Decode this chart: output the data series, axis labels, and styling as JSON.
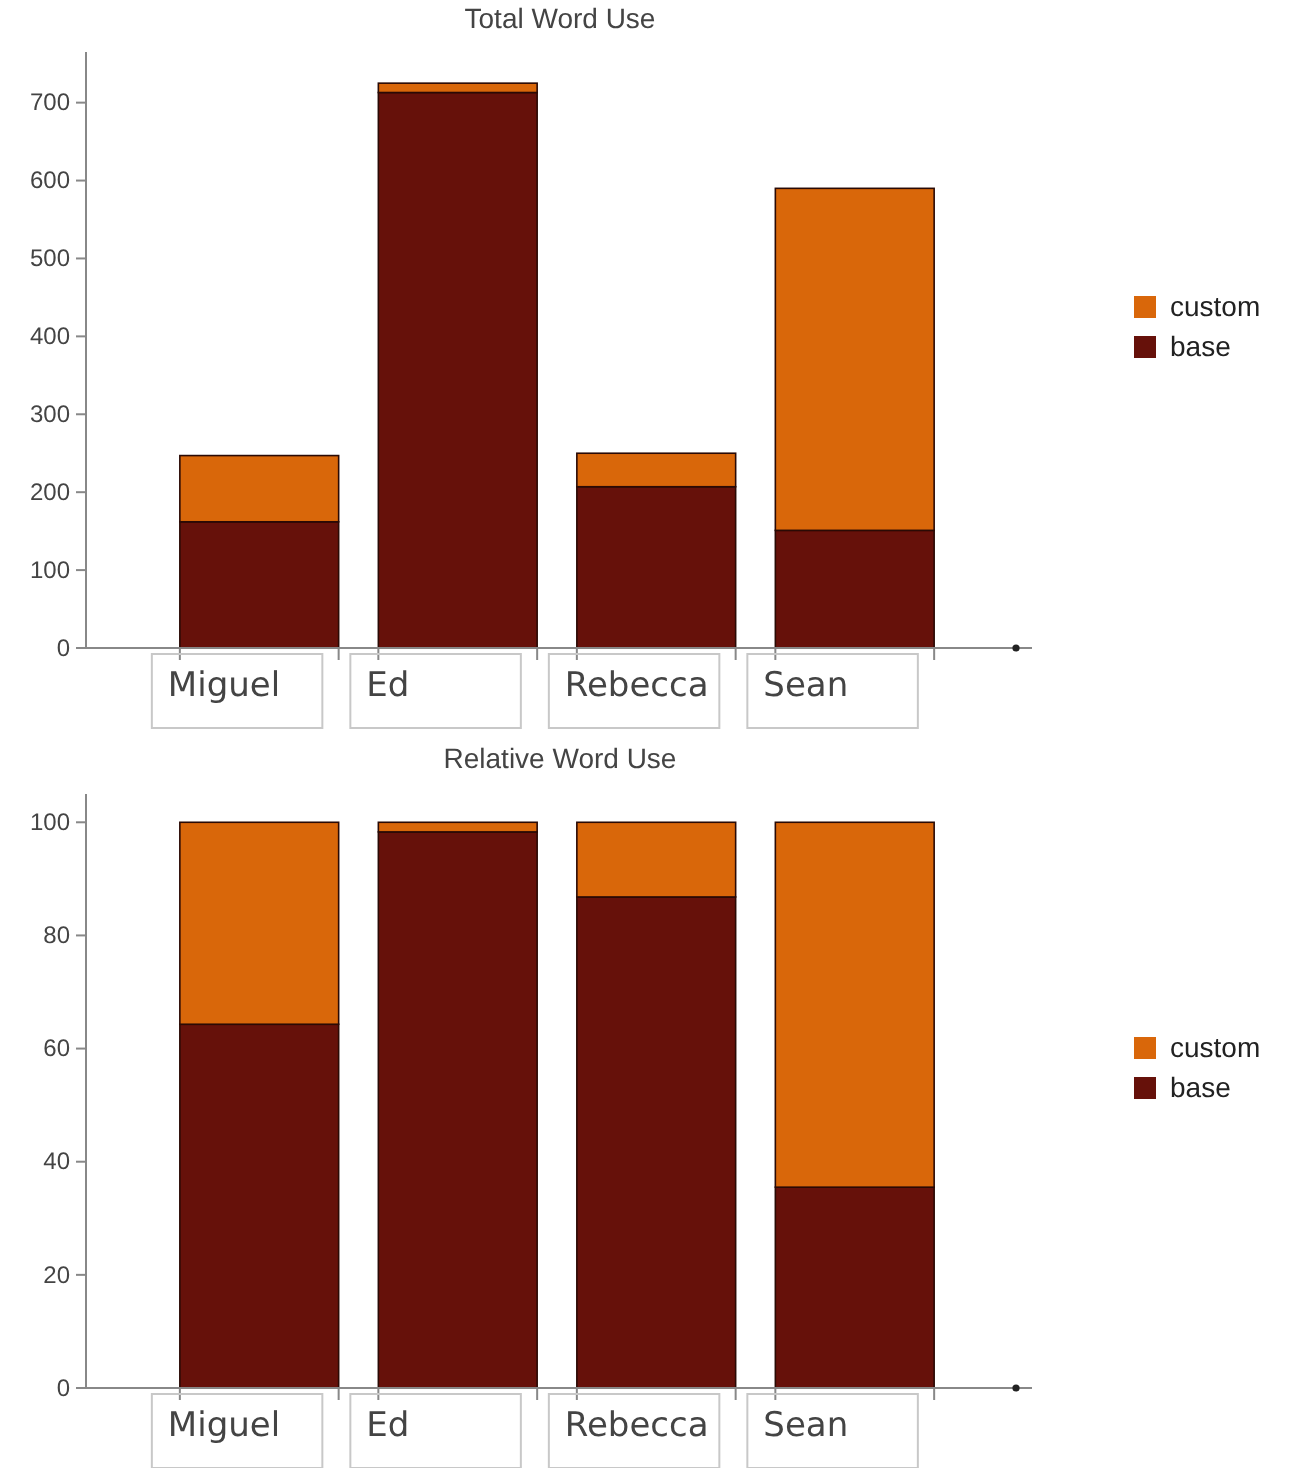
{
  "chart_data": [
    {
      "type": "bar",
      "title": "Total Word Use",
      "categories": [
        "Miguel",
        "Ed",
        "Rebecca",
        "Sean"
      ],
      "stacked": true,
      "ylim": [
        0,
        765
      ],
      "yticks": [
        0,
        100,
        200,
        300,
        400,
        500,
        600,
        700
      ],
      "legend": "right",
      "series": [
        {
          "name": "base",
          "color": "#66110a",
          "values": [
            162,
            713,
            207,
            151
          ]
        },
        {
          "name": "custom",
          "color": "#d9670a",
          "values": [
            85,
            12,
            43,
            439
          ]
        }
      ]
    },
    {
      "type": "bar",
      "title": "Relative Word Use",
      "categories": [
        "Miguel",
        "Ed",
        "Rebecca",
        "Sean"
      ],
      "stacked": true,
      "ylim": [
        0,
        105
      ],
      "yticks": [
        0,
        20,
        40,
        60,
        80,
        100
      ],
      "legend": "right",
      "series": [
        {
          "name": "base",
          "color": "#66110a",
          "values": [
            64.3,
            98.3,
            86.8,
            35.5
          ]
        },
        {
          "name": "custom",
          "color": "#d9670a",
          "values": [
            35.7,
            1.7,
            13.2,
            64.5
          ]
        }
      ]
    }
  ]
}
